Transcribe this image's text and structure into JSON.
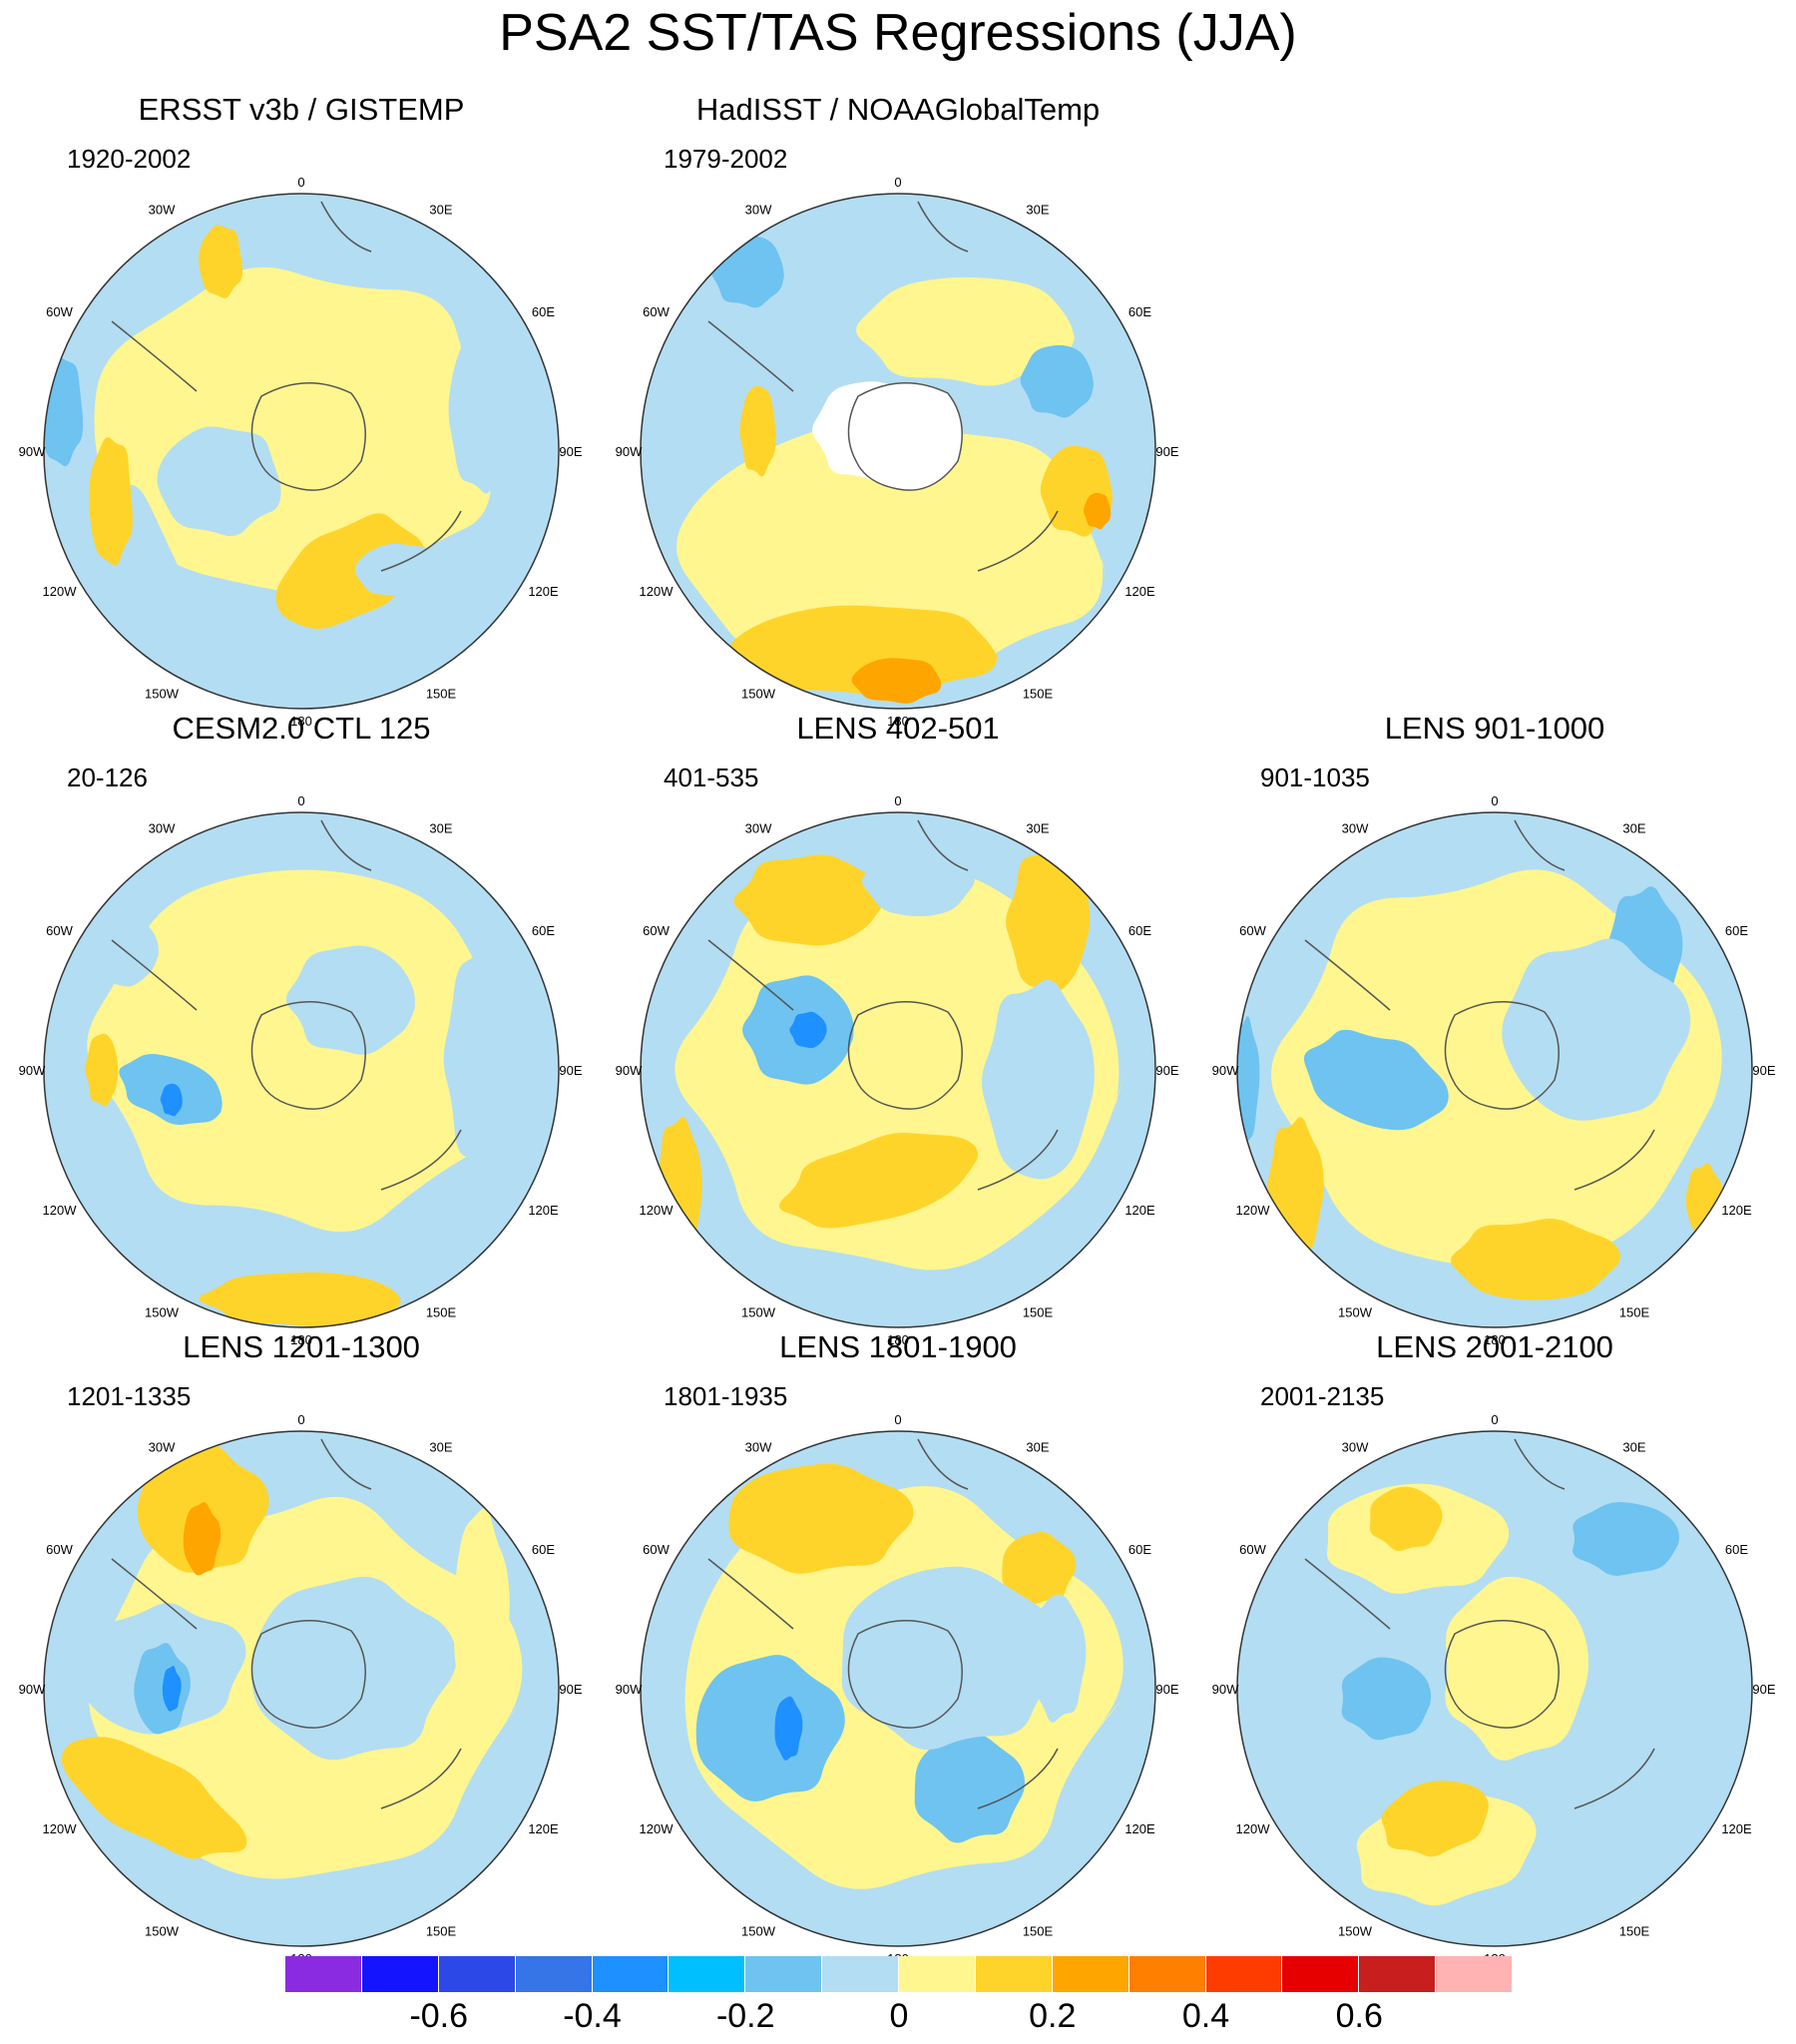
{
  "title": "PSA2 SST/TAS Regressions (JJA)",
  "lon_labels": [
    "0",
    "30E",
    "60E",
    "90E",
    "120E",
    "150E",
    "180",
    "150W",
    "120W",
    "90W",
    "60W",
    "30W"
  ],
  "panels": [
    {
      "title": "ERSST v3b / GISTEMP",
      "years": "1920-2002",
      "pattern": "obs1"
    },
    {
      "title": "HadISST / NOAAGlobalTemp",
      "years": "1979-2002",
      "pattern": "obs2"
    },
    {
      "title": "CESM2.0 CTL 125",
      "years": "20-126",
      "pattern": "m1"
    },
    {
      "title": "LENS 402-501",
      "years": "401-535",
      "pattern": "m2"
    },
    {
      "title": "LENS 901-1000",
      "years": "901-1035",
      "pattern": "m3"
    },
    {
      "title": "LENS 1201-1300",
      "years": "1201-1335",
      "pattern": "m4"
    },
    {
      "title": "LENS 1801-1900",
      "years": "1801-1935",
      "pattern": "m5"
    },
    {
      "title": "LENS 2001-2100",
      "years": "2001-2135",
      "pattern": "m6"
    }
  ],
  "colorbar": {
    "colors": [
      "#8a2be2",
      "#1414ff",
      "#2c49e8",
      "#3575e8",
      "#1e90ff",
      "#00bfff",
      "#6ec3f0",
      "#b3ddf2",
      "#fff68f",
      "#ffd42a",
      "#ffa500",
      "#ff7f00",
      "#ff3c00",
      "#e60000",
      "#c81e1e",
      "#ffb3b3"
    ],
    "labels": [
      "-0.6",
      "-0.4",
      "-0.2",
      "0",
      "0.2",
      "0.4",
      "0.6"
    ],
    "label_edges": [
      2,
      4,
      6,
      8,
      10,
      12,
      14
    ]
  },
  "fill_colors": {
    "light_blue": "#b3ddf2",
    "mid_blue": "#6ec3f0",
    "deep_blue": "#1e90ff",
    "yellow": "#fff68f",
    "gold": "#ffd42a",
    "orange": "#ffa500",
    "land": "#ffffff"
  }
}
